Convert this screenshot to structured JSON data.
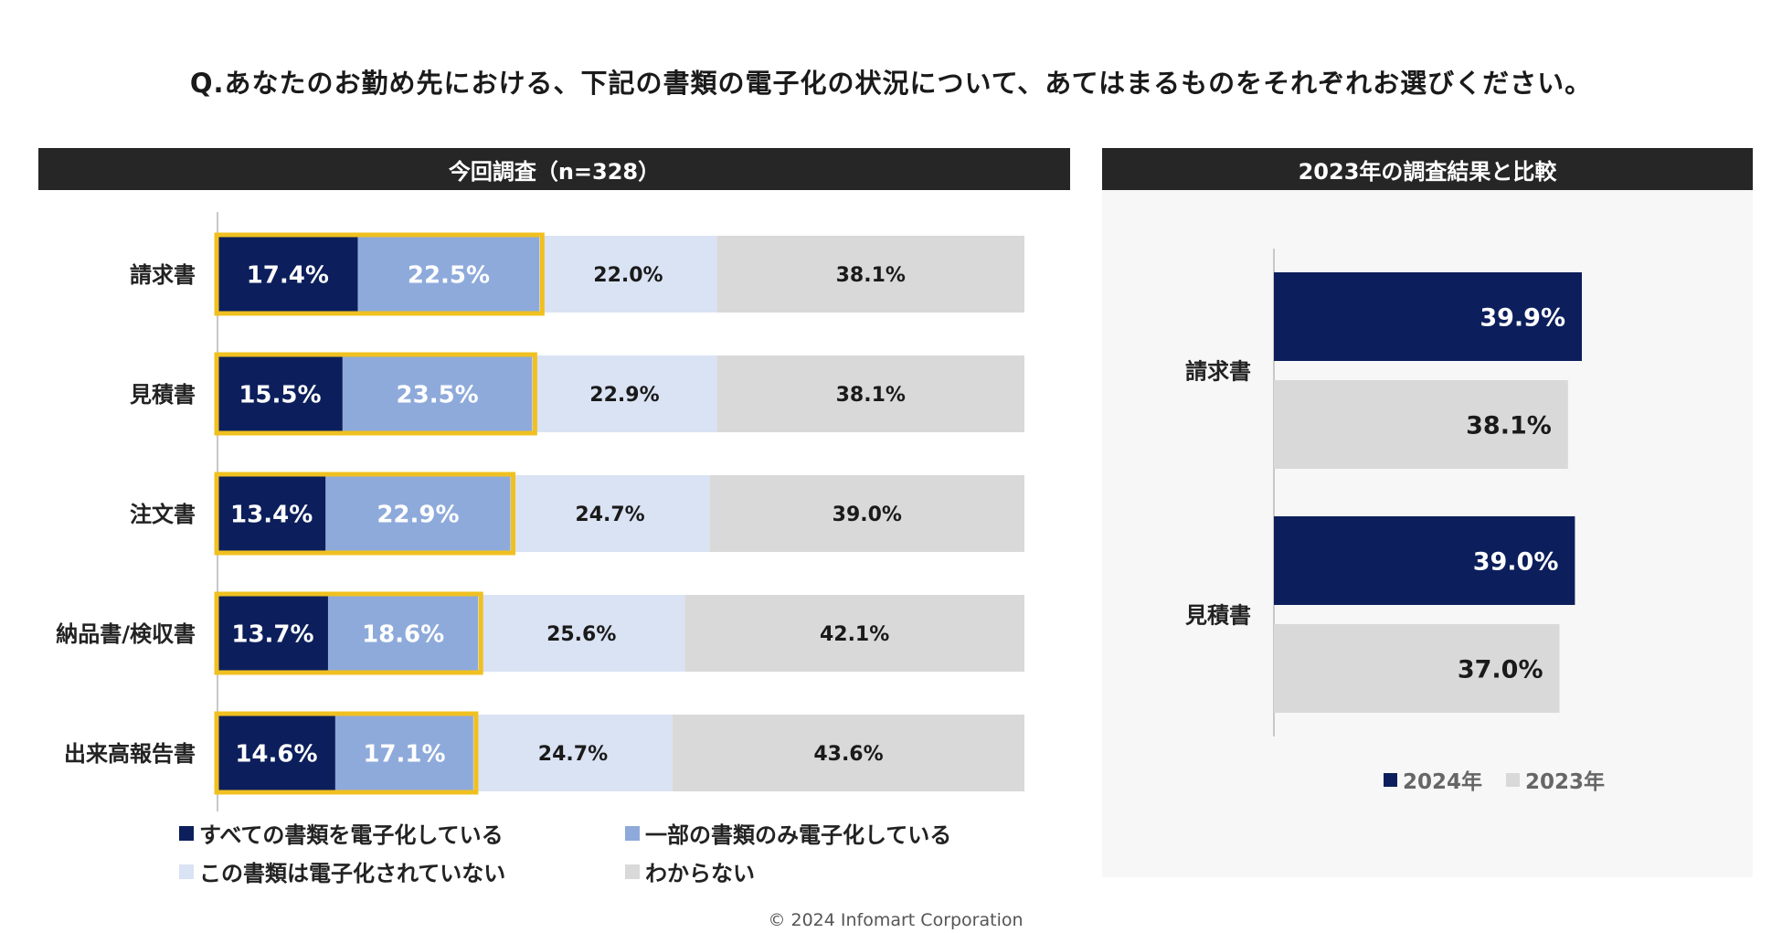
{
  "question": "Q.あなたのお勤め先における、下記の書類の電子化の状況について、あてはまるものをそれぞれお選びください。",
  "left_panel_title": "今回調査（n=328）",
  "right_panel_title": "2023年の調査結果と比較",
  "copyright": "© 2024 Infomart Corporation",
  "colors": {
    "all": "#0c1f5c",
    "part": "#8eaadb",
    "none": "#dae3f3",
    "unknown": "#d9d9d9",
    "highlight": "#f0c020",
    "y2024": "#0c1f5c",
    "y2023": "#d9d9d9"
  },
  "chart_data": [
    {
      "type": "bar",
      "orientation": "horizontal",
      "stacked": true,
      "title": "今回調査（n=328）",
      "categories": [
        "請求書",
        "見積書",
        "注文書",
        "納品書/検収書",
        "出来高報告書"
      ],
      "series": [
        {
          "name": "すべての書類を電子化している",
          "values": [
            17.4,
            15.5,
            13.4,
            13.7,
            14.6
          ],
          "labels": [
            "17.4%",
            "15.5%",
            "13.4%",
            "13.7%",
            "14.6%"
          ]
        },
        {
          "name": "一部の書類のみ電子化している",
          "values": [
            22.5,
            23.5,
            22.9,
            18.6,
            17.1
          ],
          "labels": [
            "22.5%",
            "23.5%",
            "22.9%",
            "18.6%",
            "17.1%"
          ]
        },
        {
          "name": "この書類は電子化されていない",
          "values": [
            22.0,
            22.9,
            24.7,
            25.6,
            24.7
          ],
          "labels": [
            "22.0%",
            "22.9%",
            "24.7%",
            "25.6%",
            "24.7%"
          ]
        },
        {
          "name": "わからない",
          "values": [
            38.1,
            38.1,
            39.0,
            42.1,
            43.6
          ],
          "labels": [
            "38.1%",
            "38.1%",
            "39.0%",
            "42.1%",
            "43.6%"
          ]
        }
      ],
      "xlim": [
        0,
        100
      ],
      "highlight": "first two series outlined in yellow",
      "legend_position": "bottom"
    },
    {
      "type": "bar",
      "orientation": "horizontal",
      "title": "2023年の調査結果と比較",
      "categories": [
        "請求書",
        "見積書"
      ],
      "series": [
        {
          "name": "2024年",
          "values": [
            39.9,
            39.0
          ],
          "labels": [
            "39.9%",
            "39.0%"
          ]
        },
        {
          "name": "2023年",
          "values": [
            38.1,
            37.0
          ],
          "labels": [
            "38.1%",
            "37.0%"
          ]
        }
      ],
      "xlim": [
        0,
        100
      ],
      "legend_position": "bottom"
    }
  ]
}
